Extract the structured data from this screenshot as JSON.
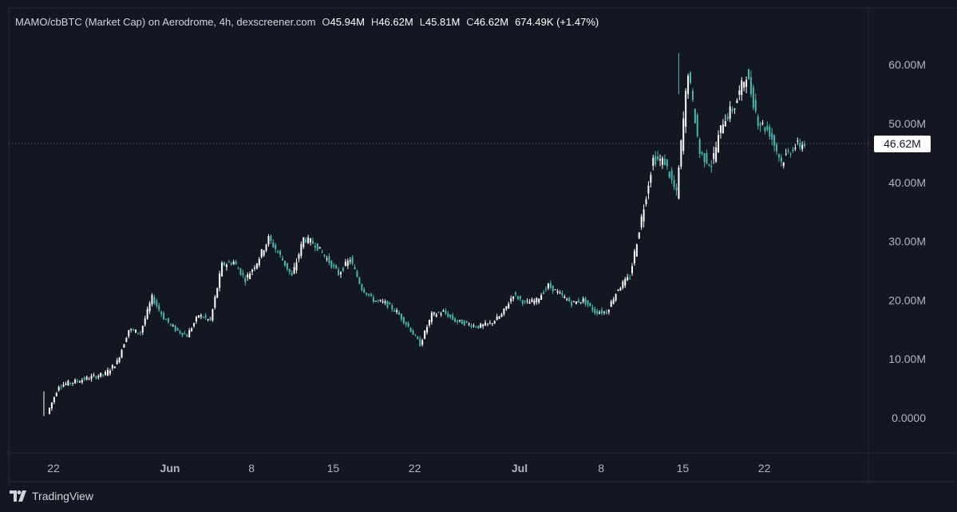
{
  "header": {
    "title": "MAMO/cbBTC (Market Cap) on Aerodrome, 4h, dexscreener.com",
    "open_label": "O",
    "open_value": "45.94M",
    "high_label": "H",
    "high_value": "46.62M",
    "low_label": "L",
    "low_value": "45.81M",
    "close_label": "C",
    "close_value": "46.62M",
    "change": "674.49K (+1.47%)"
  },
  "price_tag": "46.62M",
  "footer": {
    "brand": "TradingView"
  },
  "colors": {
    "background": "#131722",
    "candle_up": "#ffffff",
    "candle_down": "#4db6ac",
    "axis_text": "#b2b5be",
    "grid_line": "#2a2e39"
  },
  "chart_data": {
    "type": "candlestick",
    "title": "MAMO/cbBTC (Market Cap) on Aerodrome, 4h, dexscreener.com",
    "y_unit": "USD market cap (millions)",
    "ylim": [
      -5,
      65
    ],
    "y_ticks": [
      {
        "value": 0,
        "label": "0.0000"
      },
      {
        "value": 10,
        "label": "10.00M"
      },
      {
        "value": 20,
        "label": "20.00M"
      },
      {
        "value": 30,
        "label": "30.00M"
      },
      {
        "value": 40,
        "label": "40.00M"
      },
      {
        "value": 50,
        "label": "50.00M"
      },
      {
        "value": 60,
        "label": "60.00M"
      }
    ],
    "x_ticks": [
      {
        "date": "May 22",
        "label": "22",
        "bold": false
      },
      {
        "date": "Jun 1",
        "label": "Jun",
        "bold": true
      },
      {
        "date": "Jun 8",
        "label": "8",
        "bold": false
      },
      {
        "date": "Jun 15",
        "label": "15",
        "bold": false
      },
      {
        "date": "Jun 22",
        "label": "22",
        "bold": false
      },
      {
        "date": "Jul 1",
        "label": "Jul",
        "bold": true
      },
      {
        "date": "Jul 8",
        "label": "8",
        "bold": false
      },
      {
        "date": "Jul 15",
        "label": "15",
        "bold": false
      },
      {
        "date": "Jul 22",
        "label": "22",
        "bold": false
      }
    ],
    "x_range": [
      "May 22",
      "Jul 25"
    ],
    "grid": false,
    "last_close": 46.62,
    "series": [
      {
        "name": "",
        "points": [
          [
            "May 22",
            0.7,
            5.5
          ],
          [
            "May 23",
            5.5,
            6.0
          ],
          [
            "May 24",
            6.0,
            6.5
          ],
          [
            "May 25",
            6.5,
            7.0
          ],
          [
            "May 26",
            7.0,
            7.5
          ],
          [
            "May 27",
            7.5,
            9.5
          ],
          [
            "May 28",
            9.5,
            15.0
          ],
          [
            "May 29",
            15.0,
            14.5
          ],
          [
            "May 30",
            14.5,
            20.5
          ],
          [
            "May 31",
            20.5,
            17.0
          ],
          [
            "Jun 1",
            17.0,
            15.0
          ],
          [
            "Jun 2",
            15.0,
            14.0
          ],
          [
            "Jun 3",
            14.0,
            17.5
          ],
          [
            "Jun 4",
            17.5,
            16.5
          ],
          [
            "Jun 5",
            16.5,
            26.0
          ],
          [
            "Jun 6",
            26.0,
            26.5
          ],
          [
            "Jun 7",
            26.5,
            23.5
          ],
          [
            "Jun 8",
            23.5,
            26.5
          ],
          [
            "Jun 9",
            26.5,
            30.5
          ],
          [
            "Jun 10",
            30.5,
            27.5
          ],
          [
            "Jun 11",
            27.5,
            24.0
          ],
          [
            "Jun 12",
            24.0,
            30.5
          ],
          [
            "Jun 13",
            30.5,
            29.5
          ],
          [
            "Jun 14",
            29.5,
            27.0
          ],
          [
            "Jun 15",
            27.0,
            24.5
          ],
          [
            "Jun 16",
            24.5,
            27.0
          ],
          [
            "Jun 17",
            27.0,
            22.0
          ],
          [
            "Jun 18",
            22.0,
            20.0
          ],
          [
            "Jun 19",
            20.0,
            19.5
          ],
          [
            "Jun 20",
            19.5,
            18.0
          ],
          [
            "Jun 21",
            18.0,
            15.5
          ],
          [
            "Jun 22",
            15.5,
            12.5
          ],
          [
            "Jun 23",
            12.5,
            17.5
          ],
          [
            "Jun 24",
            17.5,
            18.0
          ],
          [
            "Jun 25",
            18.0,
            16.5
          ],
          [
            "Jun 26",
            16.5,
            16.0
          ],
          [
            "Jun 27",
            16.0,
            15.5
          ],
          [
            "Jun 28",
            15.5,
            16.0
          ],
          [
            "Jun 29",
            16.0,
            17.5
          ],
          [
            "Jun 30",
            17.5,
            21.0
          ],
          [
            "Jul 1",
            21.0,
            19.5
          ],
          [
            "Jul 2",
            19.5,
            20.0
          ],
          [
            "Jul 3",
            20.0,
            22.5
          ],
          [
            "Jul 4",
            22.5,
            21.0
          ],
          [
            "Jul 5",
            21.0,
            19.5
          ],
          [
            "Jul 6",
            19.5,
            20.0
          ],
          [
            "Jul 7",
            20.0,
            18.0
          ],
          [
            "Jul 8",
            18.0,
            18.0
          ],
          [
            "Jul 9",
            18.0,
            22.0
          ],
          [
            "Jul 10",
            22.0,
            24.0
          ],
          [
            "Jul 11",
            24.0,
            34.0
          ],
          [
            "Jul 12",
            34.0,
            44.0
          ],
          [
            "Jul 13",
            44.0,
            43.5
          ],
          [
            "Jul 14",
            43.5,
            38.0
          ],
          [
            "Jul 15",
            38.0,
            59.0
          ],
          [
            "Jul 16",
            59.0,
            45.0
          ],
          [
            "Jul 17",
            45.0,
            43.0
          ],
          [
            "Jul 18",
            43.0,
            50.5
          ],
          [
            "Jul 19",
            50.5,
            53.0
          ],
          [
            "Jul 20",
            53.0,
            58.5
          ],
          [
            "Jul 21",
            58.5,
            50.5
          ],
          [
            "Jul 22",
            50.5,
            48.5
          ],
          [
            "Jul 23",
            48.5,
            43.5
          ],
          [
            "Jul 24",
            43.5,
            46.0
          ],
          [
            "Jul 25",
            46.0,
            46.62
          ]
        ]
      }
    ]
  }
}
